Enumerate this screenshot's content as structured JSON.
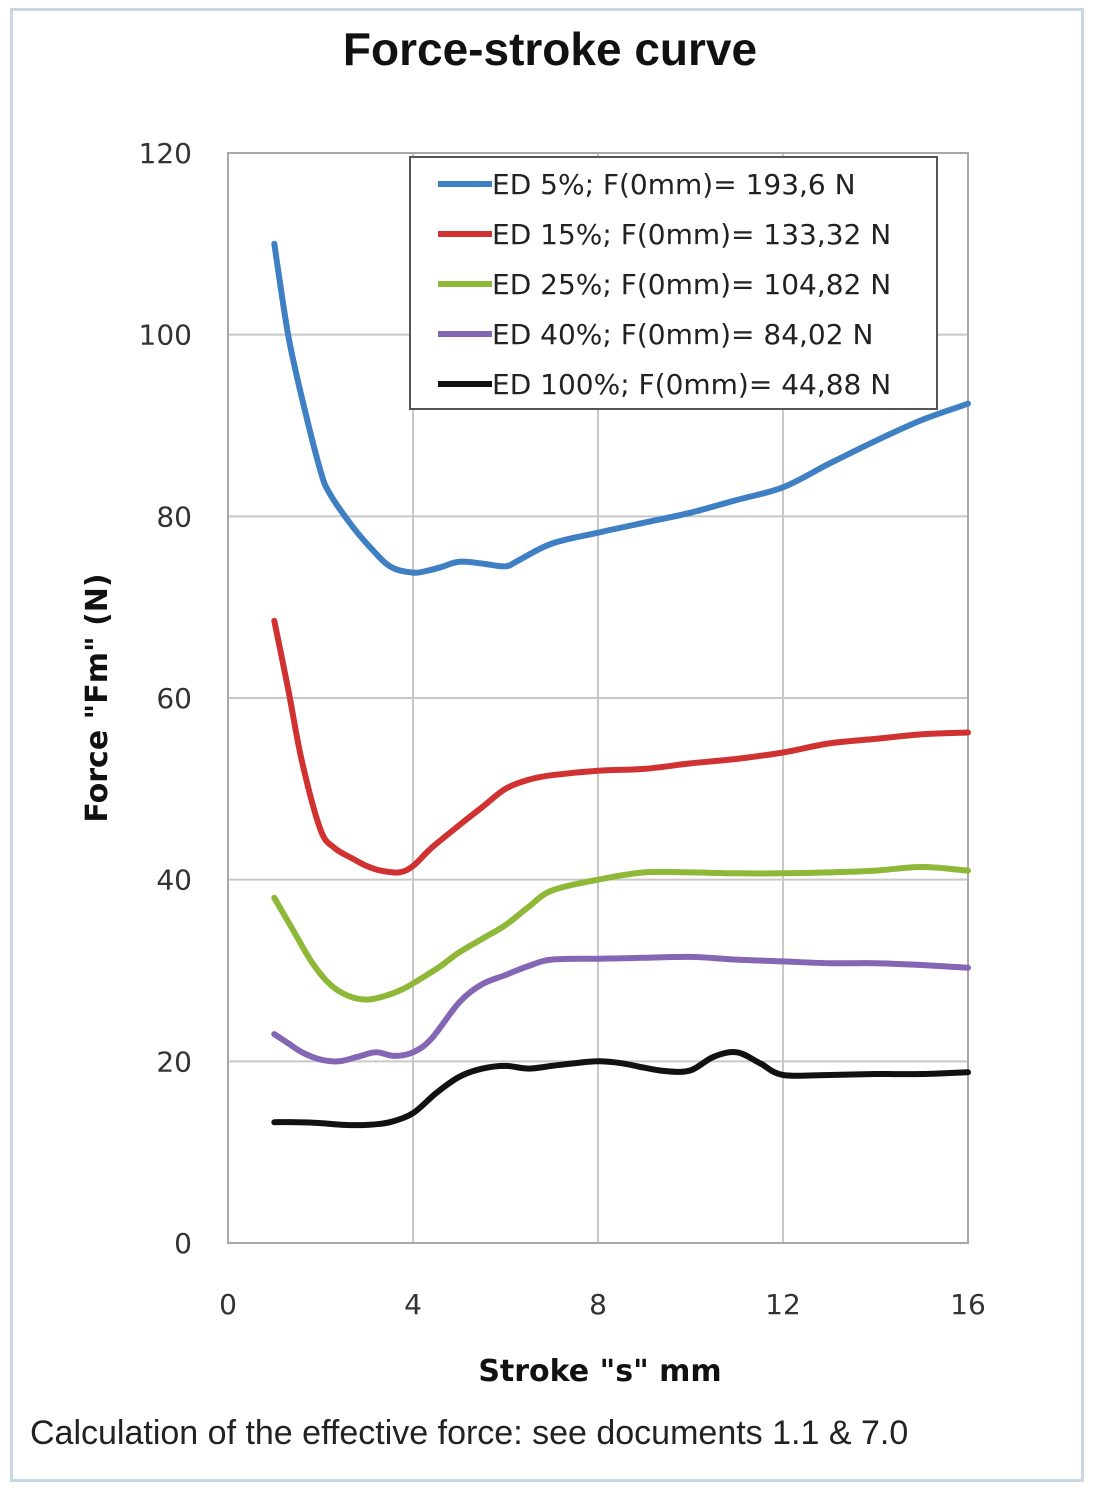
{
  "title": "Force-stroke curve",
  "footnote": "Calculation of the effective force: see documents 1.1 & 7.0",
  "chart_data": {
    "type": "line",
    "xlabel": "Stroke \"s\" mm",
    "ylabel": "Force \"Fm\" (N)",
    "xlim": [
      0,
      16
    ],
    "ylim": [
      0,
      120
    ],
    "xticks": [
      0,
      4,
      8,
      12,
      16
    ],
    "yticks": [
      0,
      20,
      40,
      60,
      80,
      100,
      120
    ],
    "grid": true,
    "legend_position": "top-right",
    "series": [
      {
        "name": "ED 5%; F(0mm)= 193,6 N",
        "color": "#3f7fc4",
        "x": [
          1,
          1.3,
          1.6,
          2,
          2.2,
          2.6,
          3,
          3.5,
          4,
          4.3,
          4.6,
          5,
          5.5,
          6,
          6.3,
          7,
          8,
          9,
          10,
          11,
          12,
          13,
          14,
          15,
          16
        ],
        "y": [
          110,
          100,
          93,
          85,
          82.5,
          79.5,
          77,
          74.5,
          73.8,
          74,
          74.4,
          75,
          74.8,
          74.5,
          75.2,
          77,
          78.2,
          79.3,
          80.4,
          81.8,
          83.2,
          85.8,
          88.3,
          90.6,
          92.4
        ]
      },
      {
        "name": "ED 15%; F(0mm)= 133,32 N",
        "color": "#d03232",
        "x": [
          1,
          1.3,
          1.6,
          2,
          2.3,
          2.7,
          3,
          3.3,
          3.7,
          4,
          4.4,
          5,
          5.5,
          6,
          6.5,
          7,
          8,
          9,
          10,
          11,
          12,
          13,
          14,
          15,
          16
        ],
        "y": [
          68.5,
          61,
          53,
          45.5,
          43.5,
          42.3,
          41.5,
          41,
          40.8,
          41.5,
          43.5,
          46,
          48,
          50,
          51,
          51.5,
          52,
          52.2,
          52.8,
          53.3,
          54,
          55,
          55.5,
          56,
          56.2
        ]
      },
      {
        "name": "ED 25%; F(0mm)= 104,82 N",
        "color": "#8fb838",
        "x": [
          1,
          1.4,
          1.8,
          2.2,
          2.6,
          3,
          3.4,
          3.8,
          4.2,
          4.6,
          5,
          5.5,
          6,
          6.5,
          7,
          8,
          9,
          10,
          11,
          12,
          13,
          14,
          15,
          16
        ],
        "y": [
          38,
          34.5,
          31,
          28.5,
          27.2,
          26.8,
          27.2,
          28,
          29.2,
          30.5,
          32,
          33.5,
          35,
          37,
          38.8,
          40,
          40.8,
          40.8,
          40.7,
          40.7,
          40.8,
          41,
          41.4,
          41
        ]
      },
      {
        "name": "ED 40%; F(0mm)= 84,02 N",
        "color": "#8466b4",
        "x": [
          1,
          1.3,
          1.6,
          2,
          2.4,
          2.8,
          3.2,
          3.6,
          4,
          4.4,
          5,
          5.5,
          6,
          6.5,
          7,
          8,
          9,
          10,
          11,
          12,
          13,
          14,
          15,
          16
        ],
        "y": [
          23,
          22,
          21,
          20.2,
          20,
          20.5,
          21,
          20.6,
          21,
          22.5,
          26.5,
          28.5,
          29.5,
          30.5,
          31.2,
          31.3,
          31.4,
          31.5,
          31.2,
          31,
          30.8,
          30.8,
          30.6,
          30.3
        ]
      },
      {
        "name": "ED 100%; F(0mm)= 44,88 N",
        "color": "#111111",
        "x": [
          1,
          1.5,
          2,
          2.5,
          3,
          3.5,
          4,
          4.5,
          5,
          5.5,
          6,
          6.5,
          7,
          7.5,
          8,
          8.5,
          9,
          9.5,
          10,
          10.5,
          11,
          11.5,
          12,
          13,
          14,
          15,
          16
        ],
        "y": [
          13.3,
          13.3,
          13.2,
          13,
          13,
          13.3,
          14.3,
          16.5,
          18.3,
          19.2,
          19.5,
          19.2,
          19.5,
          19.8,
          20,
          19.8,
          19.3,
          18.9,
          19,
          20.5,
          21,
          19.8,
          18.5,
          18.5,
          18.6,
          18.6,
          18.8
        ]
      }
    ]
  }
}
